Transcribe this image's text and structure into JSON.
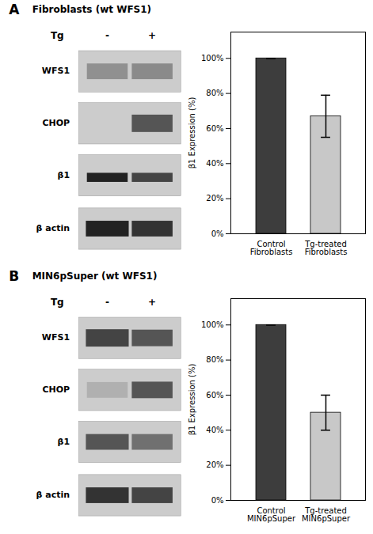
{
  "chart_data": [
    {
      "type": "bar",
      "title": "Fibroblasts (wt WFS1)",
      "annotations": [
        "A",
        "Tg",
        "-",
        "+",
        "WFS1",
        "CHOP",
        "β1",
        "β actin"
      ],
      "categories": [
        "Control\nFibroblasts",
        "Tg-treated\nFibroblasts"
      ],
      "values": [
        100,
        67
      ],
      "errors": [
        0,
        12
      ],
      "colors": [
        "#3d3d3d",
        "#c8c8c8"
      ],
      "ylabel": "β1 Expression (%)",
      "ylim": [
        0,
        115
      ],
      "yticks": [
        {
          "value": 0,
          "label": "0%"
        },
        {
          "value": 20,
          "label": "20%"
        },
        {
          "value": 40,
          "label": "40%"
        },
        {
          "value": 60,
          "label": "60%"
        },
        {
          "value": 80,
          "label": "80%"
        },
        {
          "value": 100,
          "label": "100%"
        }
      ],
      "grid": false
    },
    {
      "type": "bar",
      "title": "MIN6pSuper (wt WFS1)",
      "annotations": [
        "B",
        "Tg",
        "-",
        "+",
        "WFS1",
        "CHOP",
        "β1",
        "β actin"
      ],
      "categories": [
        "Control\nMIN6pSuper",
        "Tg-treated\nMIN6pSuper"
      ],
      "values": [
        100,
        50
      ],
      "errors": [
        0,
        10
      ],
      "colors": [
        "#3d3d3d",
        "#c8c8c8"
      ],
      "ylabel": "β1 Expression (%)",
      "ylim": [
        0,
        115
      ],
      "yticks": [
        {
          "value": 0,
          "label": "0%"
        },
        {
          "value": 20,
          "label": "20%"
        },
        {
          "value": 40,
          "label": "40%"
        },
        {
          "value": 60,
          "label": "60%"
        },
        {
          "value": 80,
          "label": "80%"
        },
        {
          "value": 100,
          "label": "100%"
        }
      ],
      "grid": false
    }
  ]
}
